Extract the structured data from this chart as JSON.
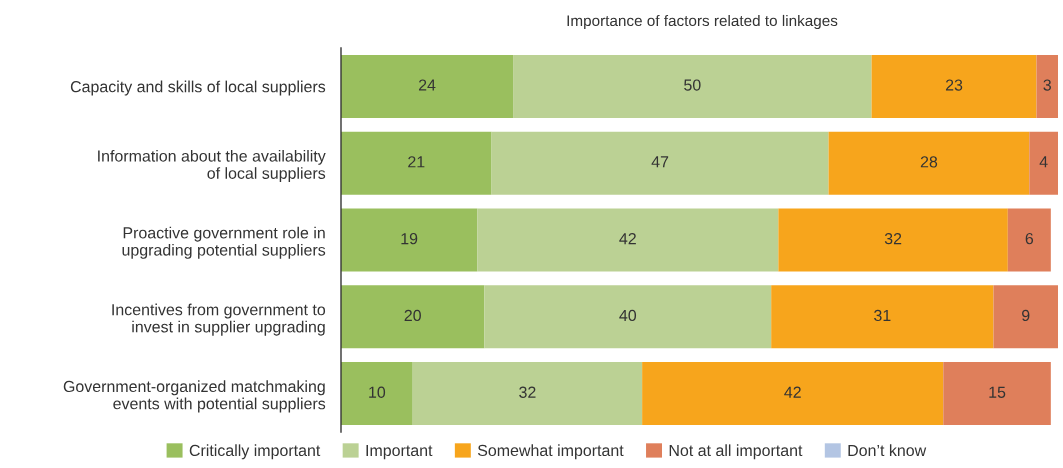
{
  "chart_data": {
    "type": "bar",
    "orientation": "horizontal",
    "stacked": true,
    "title": "Importance of factors related to linkages",
    "categories": [
      "Capacity and skills of local suppliers",
      "Information about the availability\nof local suppliers",
      "Proactive government role in\nupgrading potential suppliers",
      "Incentives from government to\ninvest in supplier upgrading",
      "Government-organized matchmaking\nevents with potential suppliers"
    ],
    "series": [
      {
        "name": "Critically important",
        "color": "#9abf5e",
        "values": [
          24,
          21,
          19,
          20,
          10
        ]
      },
      {
        "name": "Important",
        "color": "#bbd194",
        "values": [
          50,
          47,
          42,
          40,
          32
        ]
      },
      {
        "name": "Somewhat important",
        "color": "#f7a51c",
        "values": [
          23,
          28,
          32,
          31,
          42
        ]
      },
      {
        "name": "Not at all important",
        "color": "#df7f5b",
        "values": [
          3,
          4,
          6,
          9,
          15
        ]
      },
      {
        "name": "Don’t know",
        "color": "#b3c5e3",
        "values": [
          null,
          null,
          null,
          null,
          null
        ]
      }
    ],
    "data_labels": true,
    "legend": "bottom",
    "grid": false,
    "tick_labels": "y"
  }
}
